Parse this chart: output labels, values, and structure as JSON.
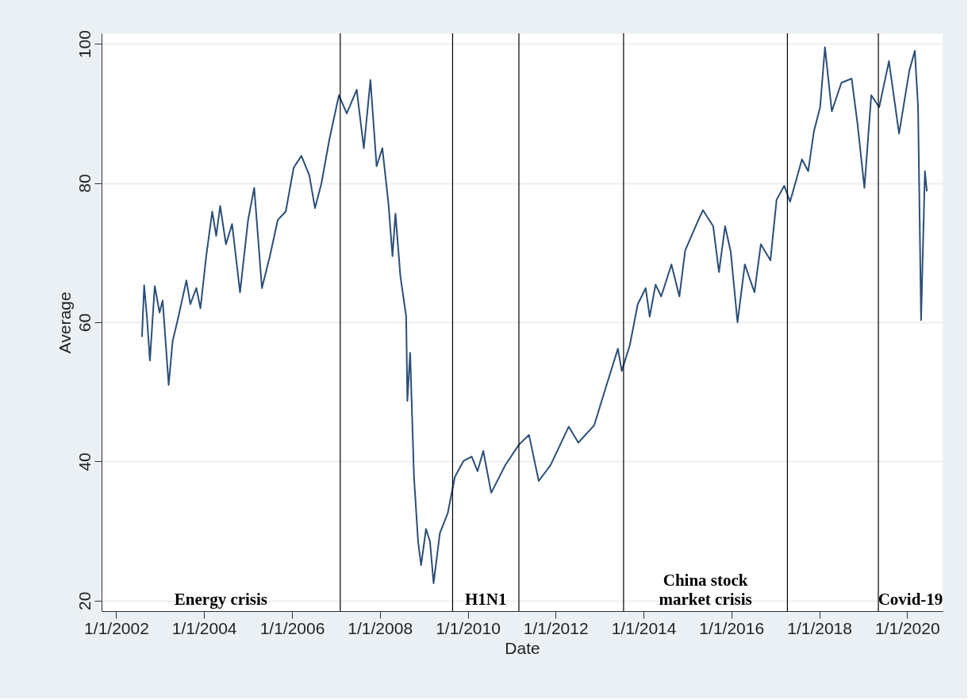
{
  "chart_data": {
    "type": "line",
    "xlabel": "Date",
    "ylabel": "Average",
    "x": [
      "2002-08-03",
      "2002-08-21",
      "2002-09-13",
      "2002-10-08",
      "2002-11-17",
      "2002-12-27",
      "2003-01-22",
      "2003-03-13",
      "2003-04-15",
      "2003-06-02",
      "2003-08-07",
      "2003-09-09",
      "2003-10-29",
      "2003-12-02",
      "2004-01-19",
      "2004-03-09",
      "2004-04-11",
      "2004-05-14",
      "2004-07-01",
      "2004-08-21",
      "2004-10-26",
      "2005-01-01",
      "2005-02-21",
      "2005-04-26",
      "2005-07-01",
      "2005-09-05",
      "2005-11-10",
      "2006-01-15",
      "2006-03-20",
      "2006-05-25",
      "2006-07-11",
      "2006-09-02",
      "2006-11-07",
      "2007-01-26",
      "2007-04-01",
      "2007-06-23",
      "2007-08-21",
      "2007-10-15",
      "2007-12-05",
      "2008-01-22",
      "2008-03-13",
      "2008-04-15",
      "2008-05-10",
      "2008-06-20",
      "2008-08-07",
      "2008-08-17",
      "2008-09-09",
      "2008-10-11",
      "2008-11-14",
      "2008-12-09",
      "2009-01-19",
      "2009-02-21",
      "2009-03-23",
      "2009-05-14",
      "2009-07-19",
      "2009-09-16",
      "2009-11-28",
      "2010-02-03",
      "2010-03-23",
      "2010-05-10",
      "2010-07-15",
      "2010-11-10",
      "2011-03-02",
      "2011-05-25",
      "2011-08-14",
      "2011-11-21",
      "2012-04-19",
      "2012-07-08",
      "2012-11-17",
      "2013-02-28",
      "2013-06-02",
      "2013-07-04",
      "2013-09-09",
      "2013-11-14",
      "2014-01-19",
      "2014-02-21",
      "2014-04-11",
      "2014-05-28",
      "2014-08-21",
      "2014-10-26",
      "2014-12-13",
      "2015-03-23",
      "2015-05-10",
      "2015-08-03",
      "2015-09-20",
      "2015-11-10",
      "2015-12-27",
      "2016-02-21",
      "2016-04-22",
      "2016-07-11",
      "2016-09-02",
      "2016-11-21",
      "2017-01-11",
      "2017-03-16",
      "2017-05-03",
      "2017-08-10",
      "2017-10-01",
      "2017-11-17",
      "2018-01-08",
      "2018-02-17",
      "2018-04-15",
      "2018-07-04",
      "2018-09-27",
      "2018-11-14",
      "2019-01-11",
      "2019-03-09",
      "2019-05-14",
      "2019-08-03",
      "2019-10-26",
      "2020-01-19",
      "2020-03-05",
      "2020-04-01",
      "2020-04-26",
      "2020-05-28",
      "2020-06-13"
    ],
    "series": [
      {
        "color": "#2b4f78",
        "values": [
          57.9,
          65.3,
          60.8,
          54.5,
          65.2,
          61.4,
          63.1,
          51.0,
          57.3,
          60.8,
          66.0,
          62.6,
          64.9,
          62.0,
          69.5,
          75.9,
          72.4,
          76.7,
          71.2,
          74.1,
          64.3,
          74.7,
          79.3,
          64.9,
          69.5,
          74.7,
          75.9,
          82.2,
          83.9,
          81.1,
          76.4,
          79.9,
          86.2,
          92.6,
          90.0,
          93.4,
          85.0,
          94.8,
          82.4,
          85.0,
          77.0,
          69.5,
          75.6,
          66.6,
          60.8,
          48.7,
          55.6,
          37.8,
          28.5,
          25.1,
          30.3,
          28.5,
          22.5,
          29.7,
          32.6,
          37.8,
          40.1,
          40.7,
          38.6,
          41.5,
          35.5,
          39.5,
          42.4,
          43.8,
          37.2,
          39.5,
          45.0,
          42.7,
          45.2,
          51.0,
          56.2,
          53.0,
          56.7,
          62.6,
          64.9,
          60.8,
          65.4,
          63.7,
          68.3,
          63.7,
          70.3,
          74.3,
          76.1,
          73.8,
          67.2,
          73.8,
          70.1,
          60.0,
          68.3,
          64.3,
          71.2,
          68.9,
          77.6,
          79.6,
          77.3,
          83.4,
          81.7,
          87.4,
          90.9,
          99.5,
          90.3,
          94.4,
          95.0,
          88.6,
          79.3,
          92.6,
          90.9,
          97.5,
          87.1,
          96.1,
          99.0,
          90.9,
          60.3,
          81.7,
          78.8
        ]
      }
    ],
    "xlim": [
      "2001-09-01",
      "2020-10-22"
    ],
    "xticks": [
      {
        "value": "2002-01-01",
        "label": "1/1/2002"
      },
      {
        "value": "2004-01-01",
        "label": "1/1/2004"
      },
      {
        "value": "2006-01-01",
        "label": "1/1/2006"
      },
      {
        "value": "2008-01-01",
        "label": "1/1/2008"
      },
      {
        "value": "2010-01-01",
        "label": "1/1/2010"
      },
      {
        "value": "2012-01-01",
        "label": "1/1/2012"
      },
      {
        "value": "2014-01-01",
        "label": "1/1/2014"
      },
      {
        "value": "2016-01-01",
        "label": "1/1/2016"
      },
      {
        "value": "2018-01-01",
        "label": "1/1/2018"
      },
      {
        "value": "2020-01-01",
        "label": "1/1/2020"
      }
    ],
    "ylim": [
      18.5,
      101.5
    ],
    "yticks": [
      20,
      40,
      60,
      80,
      100
    ],
    "grid": "y",
    "marker": "none",
    "line_style": "solid",
    "ref_lines": [
      {
        "axis": "x",
        "value": "2007-02-06",
        "color": "#000000"
      },
      {
        "axis": "x",
        "value": "2009-08-28",
        "color": "#000000"
      },
      {
        "axis": "x",
        "value": "2011-03-02",
        "color": "#000000"
      },
      {
        "axis": "x",
        "value": "2013-07-19",
        "color": "#000000"
      },
      {
        "axis": "x",
        "value": "2017-04-11",
        "color": "#000000"
      },
      {
        "axis": "x",
        "value": "2019-05-07",
        "color": "#000000"
      }
    ],
    "annotations": [
      "Energy crisis",
      "H1N1",
      "China stock market crisis",
      "Covid-19"
    ]
  }
}
